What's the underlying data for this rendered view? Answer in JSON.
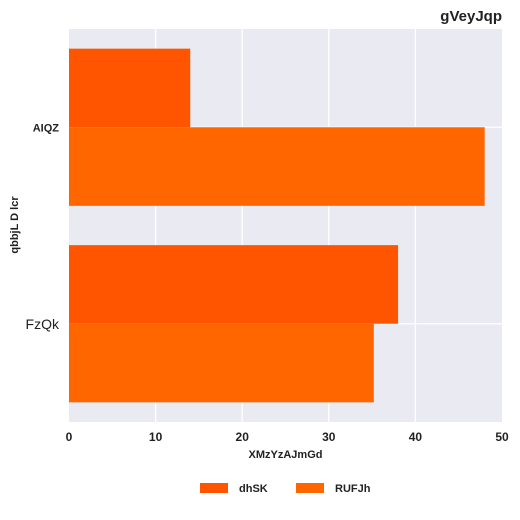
{
  "chart_data": {
    "type": "bar",
    "orientation": "horizontal",
    "title": "gVeyJqp",
    "xlabel": "XMzYzAJmGd",
    "ylabel": "qbbjL D lcr",
    "categories": [
      "AIQZ",
      "FzQk"
    ],
    "xlim": [
      0,
      50
    ],
    "xticks": [
      0,
      10,
      20,
      30,
      40,
      50
    ],
    "grid": true,
    "legend_position": "bottom",
    "series": [
      {
        "name": "dhSK",
        "color": "#ff5500",
        "values": [
          14,
          38
        ]
      },
      {
        "name": "RUFJh",
        "color": "#ff6600",
        "values": [
          48,
          35.2
        ]
      }
    ]
  }
}
